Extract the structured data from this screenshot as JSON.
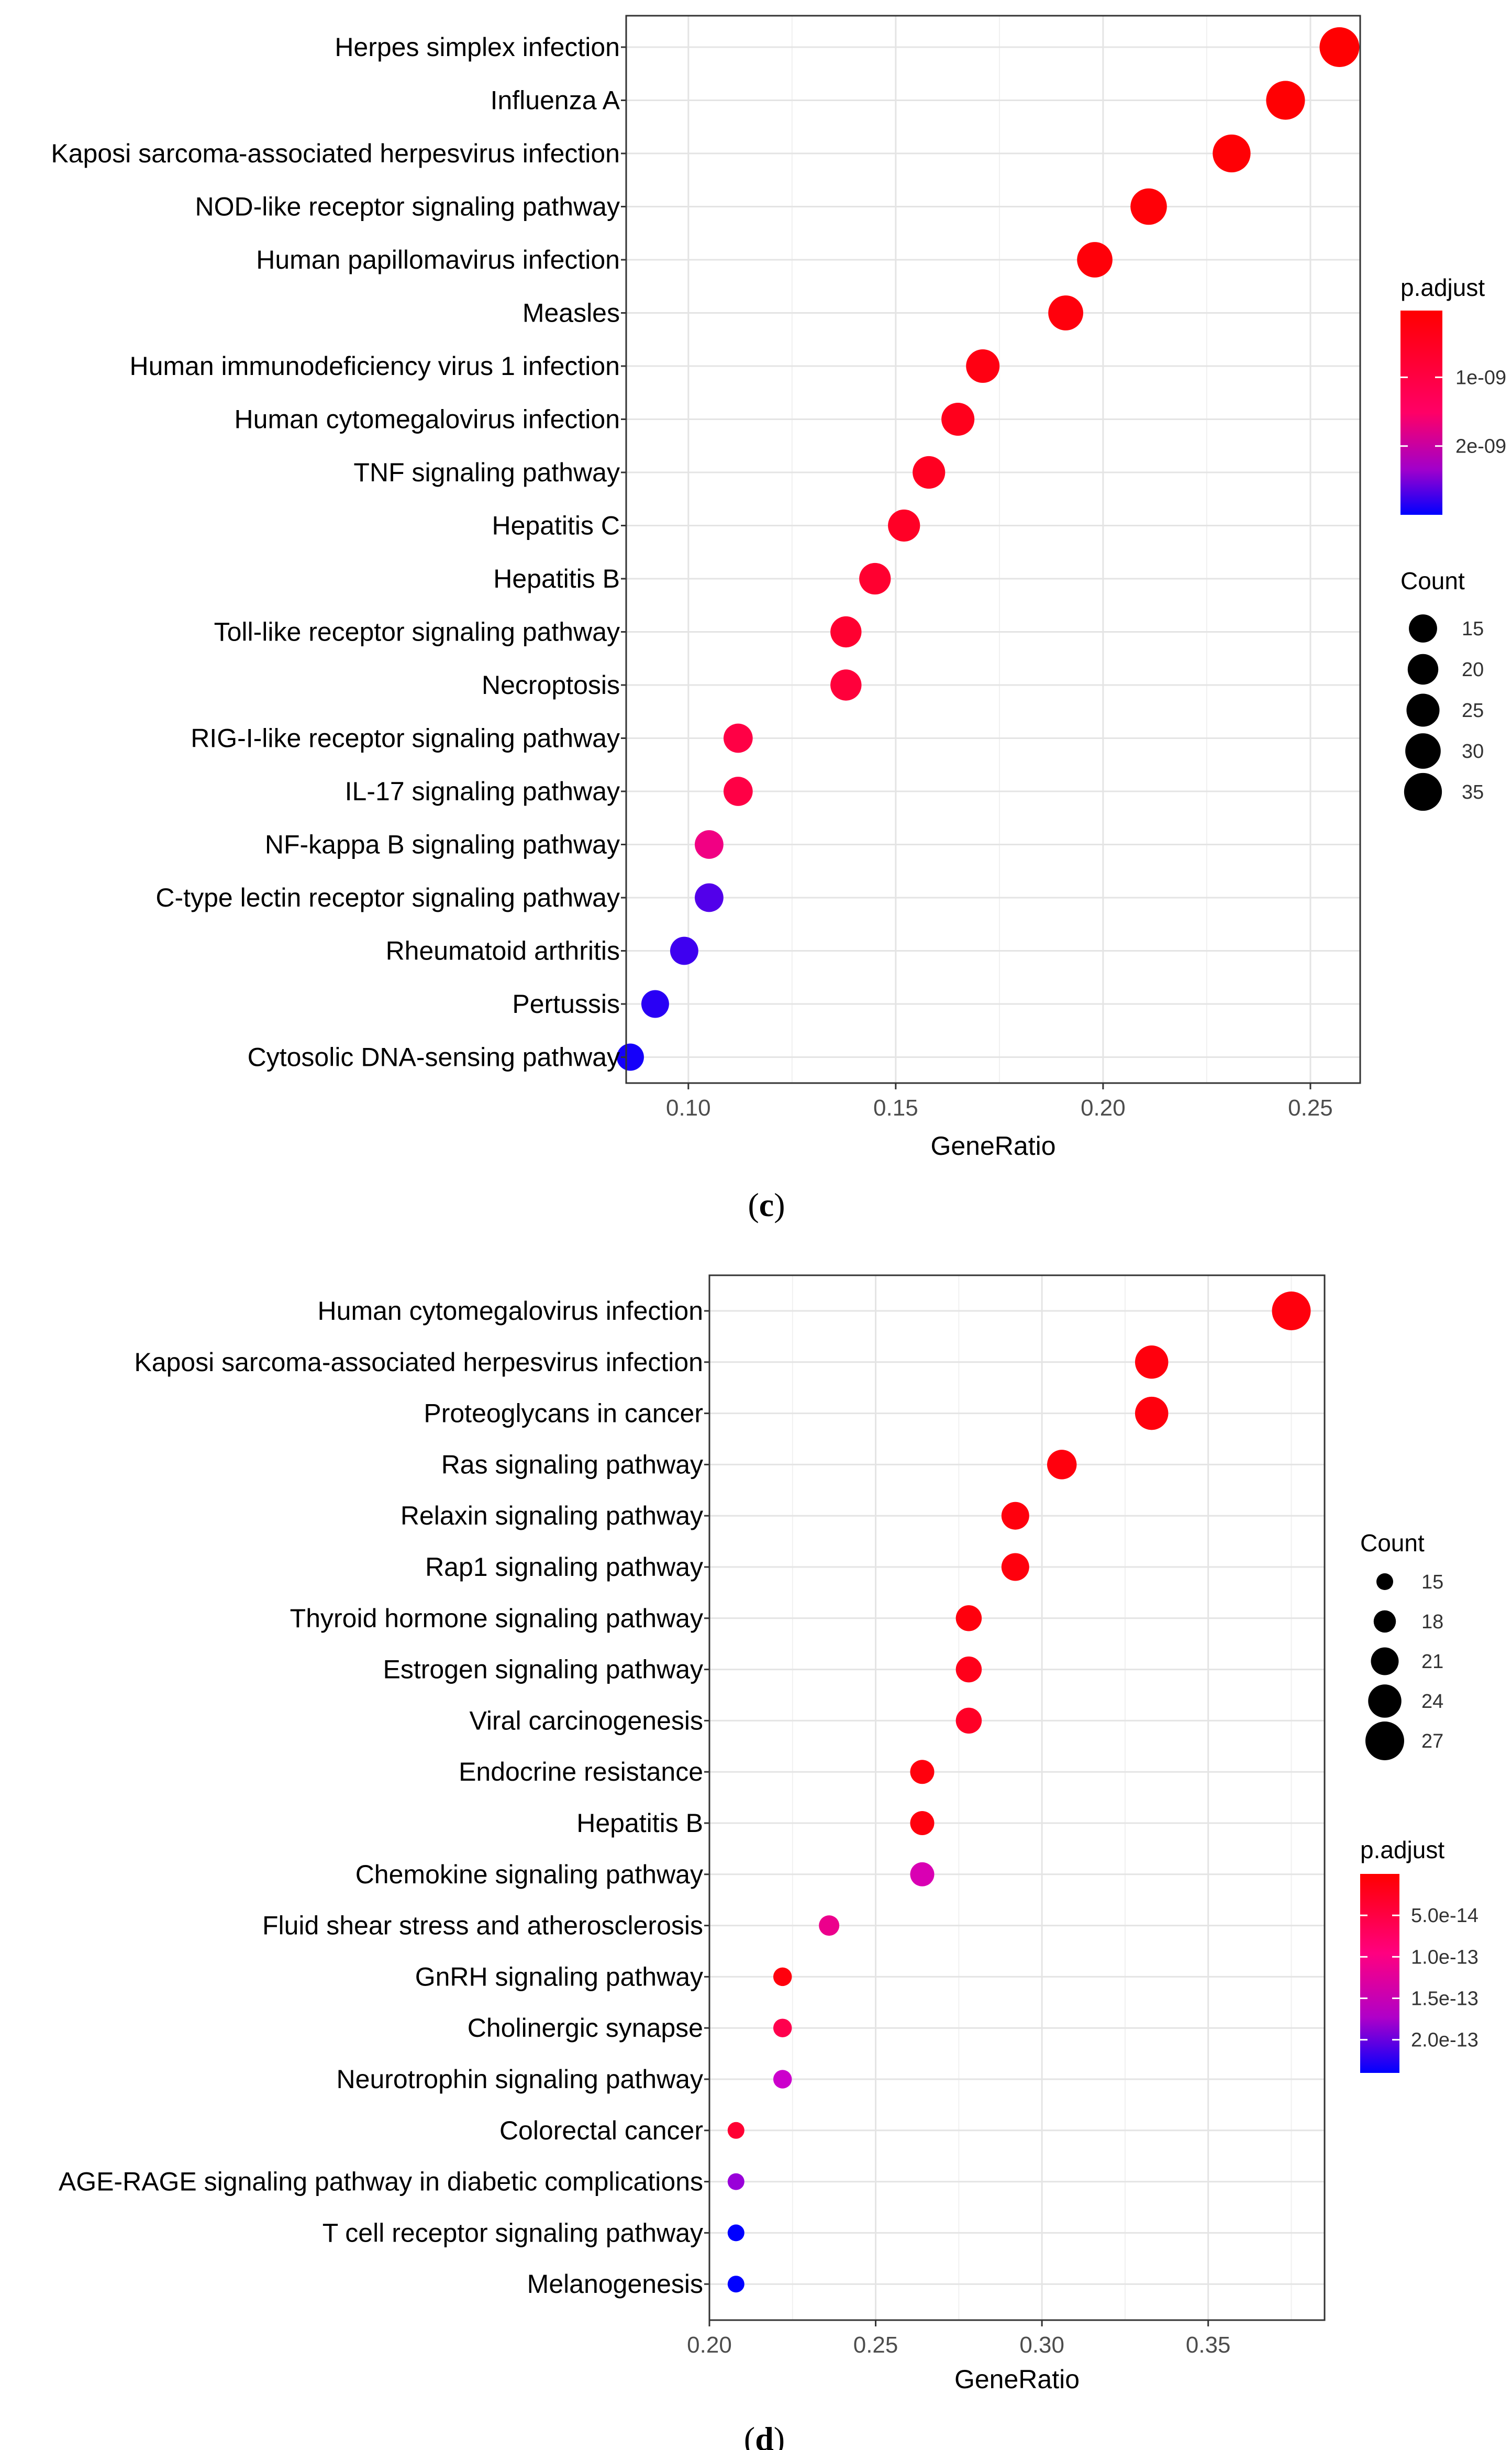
{
  "chart_data": [
    {
      "type": "scatter",
      "panel_label": "c",
      "xlabel": "GeneRatio",
      "xlim": [
        0.085,
        0.262
      ],
      "xticks": [
        0.1,
        0.15,
        0.2,
        0.25
      ],
      "xtick_labels": [
        "0.10",
        "0.15",
        "0.20",
        "0.25"
      ],
      "grid": true,
      "categories": [
        "Herpes simplex infection",
        "Influenza A",
        "Kaposi sarcoma-associated herpesvirus infection",
        "NOD-like receptor signaling pathway",
        "Human papillomavirus infection",
        "Measles",
        "Human immunodeficiency virus 1 infection",
        "Human cytomegalovirus infection",
        "TNF signaling pathway",
        "Hepatitis C",
        "Hepatitis B",
        "Toll-like receptor signaling pathway",
        "Necroptosis",
        "RIG-I-like receptor signaling pathway",
        "IL-17 signaling pathway",
        "NF-kappa B signaling pathway",
        "C-type lectin receptor signaling pathway",
        "Rheumatoid arthritis",
        "Pertussis",
        "Cytosolic DNA-sensing pathway"
      ],
      "x": [
        0.257,
        0.244,
        0.231,
        0.211,
        0.198,
        0.191,
        0.171,
        0.165,
        0.158,
        0.152,
        0.145,
        0.138,
        0.138,
        0.112,
        0.112,
        0.105,
        0.105,
        0.099,
        0.092,
        0.086
      ],
      "count": [
        39,
        37,
        35,
        32,
        30,
        29,
        26,
        25,
        24,
        23,
        22,
        21,
        21,
        17,
        17,
        16,
        16,
        15,
        14,
        13
      ],
      "p_adjust": [
        5e-11,
        6e-11,
        8e-11,
        1e-10,
        1.2e-10,
        1.5e-10,
        2e-10,
        3e-10,
        3.5e-10,
        4e-10,
        5e-10,
        5e-10,
        6e-10,
        7e-10,
        7e-10,
        1.3e-09,
        2.6e-09,
        2.7e-09,
        2.8e-09,
        2.9e-09
      ],
      "legend_color": {
        "title": "p.adjust",
        "ticks": [
          1e-09,
          2e-09
        ],
        "tick_labels": [
          "1e-09",
          "2e-09"
        ],
        "range": [
          3e-11,
          3e-09
        ],
        "low_color": "#ff0000",
        "high_color": "#0000ff"
      },
      "legend_size": {
        "title": "Count",
        "values": [
          15,
          20,
          25,
          30,
          35
        ]
      }
    },
    {
      "type": "scatter",
      "panel_label": "d",
      "xlabel": "GeneRatio",
      "xlim": [
        0.2,
        0.385
      ],
      "xticks": [
        0.2,
        0.25,
        0.3,
        0.35
      ],
      "xtick_labels": [
        "0.20",
        "0.25",
        "0.30",
        "0.35"
      ],
      "grid": true,
      "categories": [
        "Human cytomegalovirus infection",
        "Kaposi sarcoma-associated herpesvirus infection",
        "Proteoglycans in cancer",
        "Ras signaling pathway",
        "Relaxin signaling pathway",
        "Rap1 signaling pathway",
        "Thyroid hormone signaling pathway",
        "Estrogen signaling pathway",
        "Viral carcinogenesis",
        "Endocrine resistance",
        "Hepatitis B",
        "Chemokine signaling pathway",
        "Fluid shear stress and atherosclerosis",
        "GnRH signaling pathway",
        "Cholinergic synapse",
        "Neurotrophin signaling pathway",
        "Colorectal cancer",
        "AGE-RAGE signaling pathway in diabetic complications",
        "T cell receptor signaling pathway",
        "Melanogenesis"
      ],
      "x": [
        0.375,
        0.333,
        0.333,
        0.306,
        0.292,
        0.292,
        0.278,
        0.278,
        0.278,
        0.264,
        0.264,
        0.264,
        0.236,
        0.222,
        0.222,
        0.222,
        0.208,
        0.208,
        0.208,
        0.208
      ],
      "count": [
        27,
        24,
        24,
        22,
        21,
        21,
        20,
        20,
        20,
        19,
        19,
        19,
        17,
        16,
        16,
        16,
        15,
        15,
        15,
        15
      ],
      "p_adjust": [
        1e-14,
        1e-14,
        1e-14,
        1e-14,
        1e-14,
        1e-14,
        1e-14,
        2e-14,
        3e-14,
        1e-14,
        1e-14,
        1.4e-13,
        1.1e-13,
        1e-14,
        6e-14,
        1.6e-13,
        4e-14,
        1.8e-13,
        2.4e-13,
        2.4e-13
      ],
      "legend_color": {
        "title": "p.adjust",
        "ticks": [
          5e-14,
          1e-13,
          1.5e-13,
          2e-13
        ],
        "tick_labels": [
          "5.0e-14",
          "1.0e-13",
          "1.5e-13",
          "2.0e-13"
        ],
        "range": [
          0,
          2.4e-13
        ],
        "low_color": "#ff0000",
        "high_color": "#0000ff"
      },
      "legend_size": {
        "title": "Count",
        "values": [
          15,
          18,
          21,
          24,
          27
        ]
      }
    }
  ]
}
